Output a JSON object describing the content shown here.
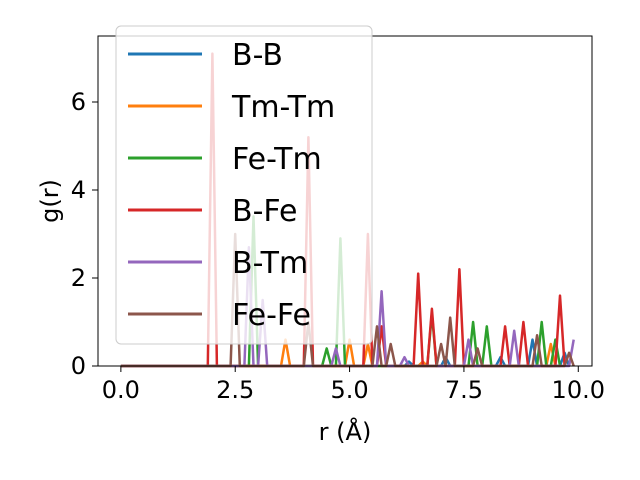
{
  "chart_data": {
    "type": "line",
    "xlabel": "r (Å)",
    "ylabel": "g(r)",
    "xlim": [
      -0.5,
      10.3
    ],
    "ylim": [
      0,
      7.5
    ],
    "xticks": [
      0.0,
      2.5,
      5.0,
      7.5,
      10.0
    ],
    "xtick_labels": [
      "0.0",
      "2.5",
      "5.0",
      "7.5",
      "10.0"
    ],
    "yticks": [
      0,
      2,
      4,
      6
    ],
    "ytick_labels": [
      "0",
      "2",
      "4",
      "6"
    ],
    "grid": false,
    "legend_position": "top-left",
    "series": [
      {
        "name": "B-B",
        "color": "#1f77b4",
        "points": [
          [
            0,
            0
          ],
          [
            6.2,
            0
          ],
          [
            6.3,
            0.1
          ],
          [
            6.4,
            0
          ],
          [
            7.0,
            0
          ],
          [
            7.1,
            0.2
          ],
          [
            7.2,
            0
          ],
          [
            8.2,
            0
          ],
          [
            8.3,
            0.2
          ],
          [
            8.4,
            0
          ],
          [
            8.9,
            0
          ],
          [
            9.0,
            0.6
          ],
          [
            9.1,
            0
          ],
          [
            9.6,
            0
          ],
          [
            9.7,
            0.3
          ],
          [
            9.8,
            0
          ]
        ]
      },
      {
        "name": "Tm-Tm",
        "color": "#ff7f0e",
        "points": [
          [
            0,
            0
          ],
          [
            3.5,
            0
          ],
          [
            3.6,
            0.6
          ],
          [
            3.7,
            0
          ],
          [
            4.9,
            0
          ],
          [
            5.0,
            0.6
          ],
          [
            5.1,
            0
          ],
          [
            5.3,
            0
          ],
          [
            5.4,
            0.5
          ],
          [
            5.5,
            0
          ],
          [
            6.5,
            0
          ],
          [
            6.6,
            0.1
          ],
          [
            6.7,
            0
          ],
          [
            9.3,
            0
          ],
          [
            9.4,
            0.5
          ],
          [
            9.5,
            0
          ]
        ]
      },
      {
        "name": "Fe-Tm",
        "color": "#2ca02c",
        "points": [
          [
            0,
            0
          ],
          [
            2.8,
            0
          ],
          [
            2.9,
            3.4
          ],
          [
            3.0,
            0
          ],
          [
            4.4,
            0
          ],
          [
            4.5,
            0.4
          ],
          [
            4.6,
            0
          ],
          [
            4.7,
            0
          ],
          [
            4.8,
            2.9
          ],
          [
            4.9,
            0
          ],
          [
            6.7,
            0
          ],
          [
            6.8,
            1.2
          ],
          [
            6.9,
            0
          ],
          [
            7.6,
            0
          ],
          [
            7.7,
            1.0
          ],
          [
            7.8,
            0
          ],
          [
            7.9,
            0
          ],
          [
            8.0,
            0.9
          ],
          [
            8.1,
            0
          ],
          [
            9.1,
            0
          ],
          [
            9.2,
            1.0
          ],
          [
            9.3,
            0
          ],
          [
            9.4,
            0
          ],
          [
            9.5,
            0.6
          ],
          [
            9.6,
            0
          ]
        ]
      },
      {
        "name": "B-Fe",
        "color": "#d62728",
        "points": [
          [
            0,
            0
          ],
          [
            1.9,
            0
          ],
          [
            2.0,
            7.1
          ],
          [
            2.1,
            0
          ],
          [
            4.0,
            0
          ],
          [
            4.1,
            5.2
          ],
          [
            4.2,
            0
          ],
          [
            5.3,
            0
          ],
          [
            5.4,
            3.0
          ],
          [
            5.5,
            0
          ],
          [
            5.6,
            0
          ],
          [
            5.7,
            0.9
          ],
          [
            5.8,
            0
          ],
          [
            6.4,
            0
          ],
          [
            6.5,
            2.1
          ],
          [
            6.6,
            0
          ],
          [
            6.7,
            0
          ],
          [
            6.8,
            1.3
          ],
          [
            6.9,
            0
          ],
          [
            7.3,
            0
          ],
          [
            7.4,
            2.2
          ],
          [
            7.5,
            0
          ],
          [
            8.3,
            0
          ],
          [
            8.4,
            0.9
          ],
          [
            8.5,
            0
          ],
          [
            8.7,
            0
          ],
          [
            8.8,
            1.0
          ],
          [
            8.9,
            0
          ],
          [
            9.5,
            0
          ],
          [
            9.6,
            1.6
          ],
          [
            9.7,
            0
          ]
        ]
      },
      {
        "name": "B-Tm",
        "color": "#9467bd",
        "points": [
          [
            0,
            0
          ],
          [
            2.7,
            0
          ],
          [
            2.8,
            2.7
          ],
          [
            2.9,
            0
          ],
          [
            3.0,
            0
          ],
          [
            3.1,
            1.5
          ],
          [
            3.2,
            0
          ],
          [
            4.6,
            0
          ],
          [
            4.7,
            0.4
          ],
          [
            4.8,
            0
          ],
          [
            5.6,
            0
          ],
          [
            5.7,
            1.7
          ],
          [
            5.8,
            0
          ],
          [
            6.1,
            0
          ],
          [
            6.2,
            0.2
          ],
          [
            6.3,
            0
          ],
          [
            7.5,
            0
          ],
          [
            7.6,
            0.6
          ],
          [
            7.7,
            0
          ],
          [
            8.5,
            0
          ],
          [
            8.6,
            0.8
          ],
          [
            8.7,
            0
          ],
          [
            9.8,
            0
          ],
          [
            9.9,
            0.6
          ]
        ]
      },
      {
        "name": "Fe-Fe",
        "color": "#8c564b",
        "points": [
          [
            0,
            0
          ],
          [
            2.4,
            0
          ],
          [
            2.5,
            3.0
          ],
          [
            2.6,
            0
          ],
          [
            4.0,
            0
          ],
          [
            4.1,
            1.0
          ],
          [
            4.2,
            0
          ],
          [
            5.5,
            0
          ],
          [
            5.6,
            0.9
          ],
          [
            5.7,
            0
          ],
          [
            5.8,
            0
          ],
          [
            5.9,
            0.5
          ],
          [
            6.0,
            0
          ],
          [
            6.9,
            0
          ],
          [
            7.0,
            0.5
          ],
          [
            7.1,
            0
          ],
          [
            7.1,
            0
          ],
          [
            7.2,
            1.1
          ],
          [
            7.3,
            0
          ],
          [
            7.7,
            0
          ],
          [
            7.8,
            0.4
          ],
          [
            7.9,
            0
          ],
          [
            9.0,
            0
          ],
          [
            9.1,
            0.7
          ],
          [
            9.2,
            0
          ],
          [
            9.7,
            0
          ],
          [
            9.8,
            0.3
          ],
          [
            9.9,
            0
          ]
        ]
      }
    ]
  }
}
